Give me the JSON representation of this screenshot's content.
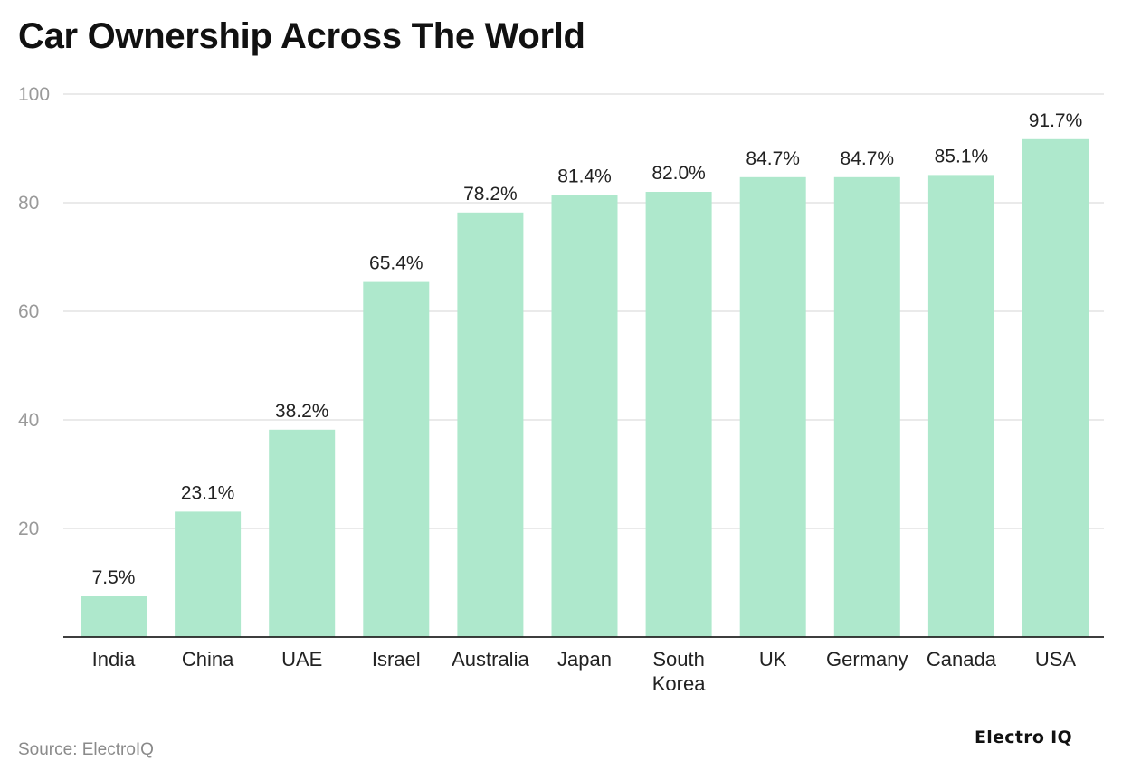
{
  "chart_data": {
    "type": "bar",
    "title": "Car Ownership Across The World",
    "xlabel": "",
    "ylabel": "",
    "categories": [
      "India",
      "China",
      "UAE",
      "Israel",
      "Australia",
      "Japan",
      "South Korea",
      "UK",
      "Germany",
      "Canada",
      "USA"
    ],
    "category_lines": [
      [
        "India"
      ],
      [
        "China"
      ],
      [
        "UAE"
      ],
      [
        "Israel"
      ],
      [
        "Australia"
      ],
      [
        "Japan"
      ],
      [
        "South",
        "Korea"
      ],
      [
        "UK"
      ],
      [
        "Germany"
      ],
      [
        "Canada"
      ],
      [
        "USA"
      ]
    ],
    "values": [
      7.5,
      23.1,
      38.2,
      65.4,
      78.2,
      81.4,
      82.0,
      84.7,
      84.7,
      85.1,
      91.7
    ],
    "data_labels": [
      "7.5%",
      "23.1%",
      "38.2%",
      "65.4%",
      "78.2%",
      "81.4%",
      "82.0%",
      "84.7%",
      "84.7%",
      "85.1%",
      "91.7%"
    ],
    "yticks": [
      20,
      40,
      60,
      80,
      100
    ],
    "ylim": [
      0,
      100
    ],
    "grid": true,
    "bar_color": "#aee8cc"
  },
  "footer": {
    "source": "Source: ElectroIQ",
    "brand": "Electro IQ"
  }
}
